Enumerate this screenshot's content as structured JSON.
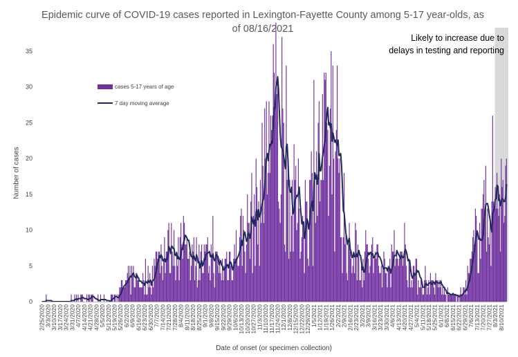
{
  "chart_data": {
    "type": "bar",
    "title": "Epidemic curve of COVID-19 cases reported in Lexington-Fayette County among 5-17 year-olds, as of 08/16/2021",
    "xlabel": "Date of onset (or specimen collection)",
    "ylabel": "Number of cases",
    "ylim": [
      0,
      35
    ],
    "yticks": [
      "0",
      "5",
      "10",
      "15",
      "20",
      "25",
      "30",
      "35"
    ],
    "x_start": "2/25/2020",
    "x_end": "8/16/2021",
    "x_tick_labels": [
      "2/25/2020",
      "3/3/2020",
      "3/10/2020",
      "3/17/2020",
      "3/24/2020",
      "3/31/2020",
      "4/7/2020",
      "4/14/2020",
      "4/21/2020",
      "4/28/2020",
      "5/5/2020",
      "5/12/2020",
      "5/19/2020",
      "5/26/2020",
      "6/2/2020",
      "6/9/2020",
      "6/16/2020",
      "6/23/2020",
      "6/30/2020",
      "7/7/2020",
      "7/14/2020",
      "7/21/2020",
      "7/28/2020",
      "8/4/2020",
      "8/11/2020",
      "8/18/2020",
      "8/25/2020",
      "9/1/2020",
      "9/8/2020",
      "9/15/2020",
      "9/22/2020",
      "9/29/2020",
      "10/6/2020",
      "10/13/2020",
      "10/20/2020",
      "10/27/2020",
      "11/3/2020",
      "11/10/2020",
      "11/17/2020",
      "11/24/2020",
      "12/1/2020",
      "12/8/2020",
      "12/15/2020",
      "12/22/2020",
      "12/29/2020",
      "1/5/2021",
      "1/12/2021",
      "1/19/2021",
      "1/26/2021",
      "2/2/2021",
      "2/9/2021",
      "2/16/2021",
      "2/23/2021",
      "3/2/2021",
      "3/9/2021",
      "3/16/2021",
      "3/23/2021",
      "3/30/2021",
      "4/6/2021",
      "4/13/2021",
      "4/20/2021",
      "4/27/2021",
      "5/4/2021",
      "5/11/2021",
      "5/18/2021",
      "5/25/2021",
      "6/1/2021",
      "6/8/2021",
      "6/15/2021",
      "6/22/2021",
      "6/29/2021",
      "7/6/2021",
      "7/13/2021",
      "7/20/2021",
      "7/27/2021",
      "8/3/2021",
      "8/10/2021"
    ],
    "series": [
      {
        "name": "cases 5-17 years of age",
        "kind": "bar",
        "color": "#7030A0",
        "weekly_mean": [
          0,
          0.3,
          0.1,
          0,
          0.1,
          0.2,
          0.3,
          0.3,
          0.6,
          0.2,
          0.1,
          0.1,
          0.5,
          1.6,
          2.6,
          3.4,
          2.8,
          2.5,
          3.5,
          5.7,
          7.2,
          7.3,
          6.6,
          7.5,
          6.8,
          6.5,
          5.3,
          5.5,
          6.3,
          4.8,
          4.8,
          6.2,
          6.8,
          8.9,
          10.2,
          11.5,
          13.6,
          18.5,
          22.8,
          21.8,
          18.2,
          14.8,
          12.5,
          11.6,
          11.8,
          16.2,
          19.5,
          19.8,
          20.3,
          14.8,
          9.0,
          6.2,
          6.2,
          5.8,
          6.5,
          4.8,
          4.5,
          4.5,
          5.2,
          6.4,
          5.4,
          4.8,
          3.6,
          2.5,
          2.8,
          2.5,
          2.1,
          1.0,
          0.8,
          0.8,
          1.5,
          5.0,
          9.5,
          10.5,
          13.8,
          13.0,
          14.2
        ],
        "peaks": [
          {
            "date": "12/4/2020",
            "value": 33
          },
          {
            "date": "1/5/2021",
            "value": 31
          },
          {
            "date": "7/31/2021",
            "value": 26
          }
        ]
      },
      {
        "name": "7 day moving average",
        "kind": "line",
        "color": "#1F2A5C"
      }
    ],
    "annotations": [
      {
        "text": "Likely to increase due to delays in testing and reporting",
        "region_start": "8/3/2021",
        "region_end": "8/16/2021",
        "shade": "#D9D9D9"
      }
    ],
    "grid": false,
    "legend_position": "top-left"
  }
}
